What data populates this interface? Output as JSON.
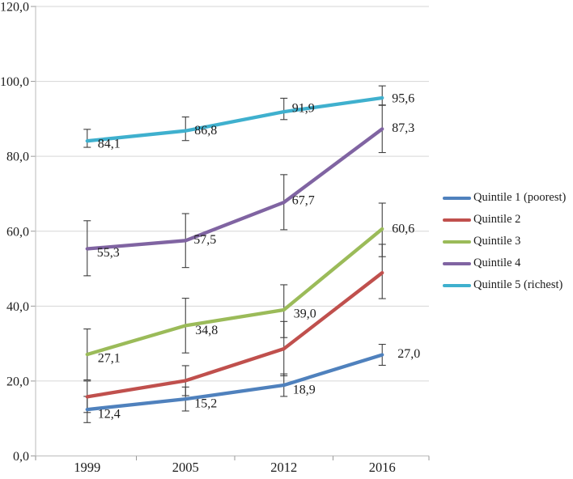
{
  "chart_data": {
    "type": "line",
    "title": "",
    "xlabel": "",
    "ylabel": "",
    "grid": true,
    "legend_position": "right",
    "decimal_separator": ",",
    "ylim": [
      0,
      120
    ],
    "categories": [
      "1999",
      "2005",
      "2012",
      "2016"
    ],
    "y_ticks": [
      {
        "v": 0,
        "label": "0,0"
      },
      {
        "v": 20,
        "label": "20,0"
      },
      {
        "v": 40,
        "label": "40,0"
      },
      {
        "v": 60,
        "label": "60,0"
      },
      {
        "v": 80,
        "label": "80,0"
      },
      {
        "v": 100,
        "label": "100,0"
      },
      {
        "v": 120,
        "label": "120,0"
      }
    ],
    "error_bars": true,
    "series": [
      {
        "name": "Quintile 1 (poorest)",
        "color": "#4f81bd",
        "values": [
          12.4,
          15.2,
          18.9,
          27.0
        ],
        "labels": [
          "12,4",
          "15,2",
          "18,9",
          "27,0"
        ],
        "err_lo": [
          8.9,
          12.0,
          15.9,
          24.2
        ],
        "err_hi": [
          15.9,
          18.4,
          21.9,
          29.8
        ],
        "label_dx": [
          13,
          11,
          11,
          19
        ],
        "label_dy": [
          5,
          5,
          5,
          -2
        ]
      },
      {
        "name": "Quintile 2",
        "color": "#c0504d",
        "values": [
          15.8,
          20.1,
          28.6,
          48.9
        ],
        "labels": [
          null,
          null,
          null,
          null
        ],
        "err_lo": [
          11.6,
          16.1,
          21.4,
          42.0
        ],
        "err_hi": [
          20.0,
          24.1,
          35.9,
          56.5
        ],
        "label_dx": [
          0,
          0,
          0,
          0
        ],
        "label_dy": [
          0,
          0,
          0,
          0
        ]
      },
      {
        "name": "Quintile 3",
        "color": "#9bbb59",
        "values": [
          27.1,
          34.8,
          39.0,
          60.6
        ],
        "labels": [
          "27,1",
          "34,8",
          "39,0",
          "60,6"
        ],
        "err_lo": [
          20.3,
          27.5,
          31.6,
          53.2
        ],
        "err_hi": [
          33.9,
          42.1,
          45.7,
          67.5
        ],
        "label_dx": [
          13,
          12,
          12,
          12
        ],
        "label_dy": [
          4,
          5,
          4,
          -1
        ]
      },
      {
        "name": "Quintile 4",
        "color": "#8064a2",
        "values": [
          55.3,
          57.5,
          67.7,
          87.3
        ],
        "labels": [
          "55,3",
          "57,5",
          "67,7",
          "87,3"
        ],
        "err_lo": [
          48.1,
          50.3,
          60.4,
          81.0
        ],
        "err_hi": [
          62.8,
          64.7,
          75.1,
          93.7
        ],
        "label_dx": [
          12,
          10,
          10,
          12
        ],
        "label_dy": [
          4,
          -2,
          -3,
          -2
        ]
      },
      {
        "name": "Quintile 5 (richest)",
        "color": "#3fb0ce",
        "values": [
          84.1,
          86.8,
          91.9,
          95.6
        ],
        "labels": [
          "84,1",
          "86,8",
          "91,9",
          "95,6"
        ],
        "err_lo": [
          82.4,
          84.2,
          89.8,
          93.6
        ],
        "err_hi": [
          87.2,
          90.5,
          95.5,
          98.8
        ],
        "label_dx": [
          13,
          11,
          10,
          12
        ],
        "label_dy": [
          3,
          -1,
          -5,
          0
        ]
      }
    ],
    "style_colors": {
      "gridline": "#d6d6d6",
      "axis": "#c4c4c4",
      "tick": "#9a9a9a",
      "error_bar": "#3f3f3f",
      "text": "#1c1c1c",
      "background": "#ffffff"
    }
  }
}
